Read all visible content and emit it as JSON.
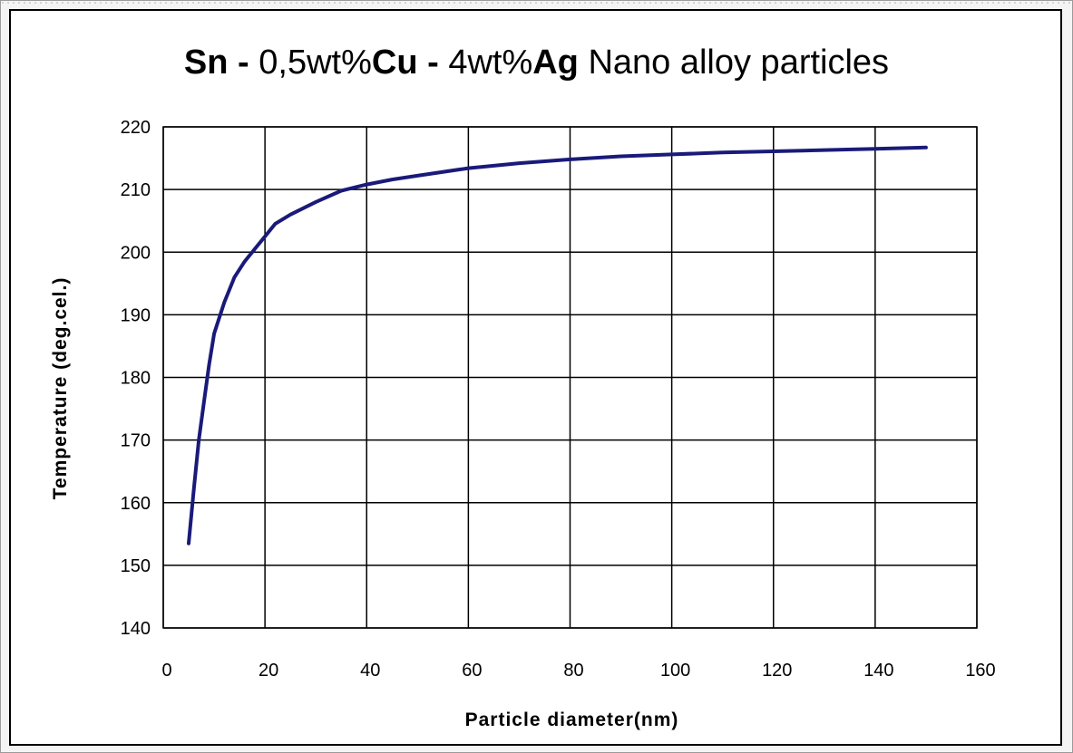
{
  "title_parts": [
    {
      "text": "Sn - ",
      "bold": true
    },
    {
      "text": "0,5wt%",
      "bold": false
    },
    {
      "text": "Cu - ",
      "bold": true
    },
    {
      "text": "4wt%",
      "bold": false
    },
    {
      "text": "Ag",
      "bold": true
    },
    {
      "text": " Nano alloy particles",
      "bold": false
    }
  ],
  "chart_data": {
    "type": "line",
    "title": "Sn - 0,5wt%Cu - 4wt%Ag Nano alloy particles",
    "xlabel": "Particle diameter(nm)",
    "ylabel": "Temperature (deg.cel.)",
    "xlim": [
      0,
      160
    ],
    "ylim": [
      140,
      220
    ],
    "xticks": [
      0,
      20,
      40,
      60,
      80,
      100,
      120,
      140,
      160
    ],
    "yticks": [
      140,
      150,
      160,
      170,
      180,
      190,
      200,
      210,
      220
    ],
    "grid": true,
    "line_color": "#1a1a7a",
    "series": [
      {
        "x": [
          5,
          6,
          7,
          8,
          9,
          10,
          12,
          14,
          16,
          18,
          20,
          22,
          25,
          30,
          35,
          40,
          45,
          50,
          60,
          70,
          80,
          90,
          100,
          110,
          120,
          130,
          140,
          150
        ],
        "y": [
          153.5,
          162,
          170,
          176,
          182,
          187,
          192,
          196,
          198.5,
          200.5,
          202.5,
          204.5,
          206,
          208,
          209.8,
          210.8,
          211.6,
          212.2,
          213.4,
          214.2,
          214.8,
          215.3,
          215.6,
          215.9,
          216.1,
          216.3,
          216.5,
          216.7
        ]
      }
    ]
  }
}
